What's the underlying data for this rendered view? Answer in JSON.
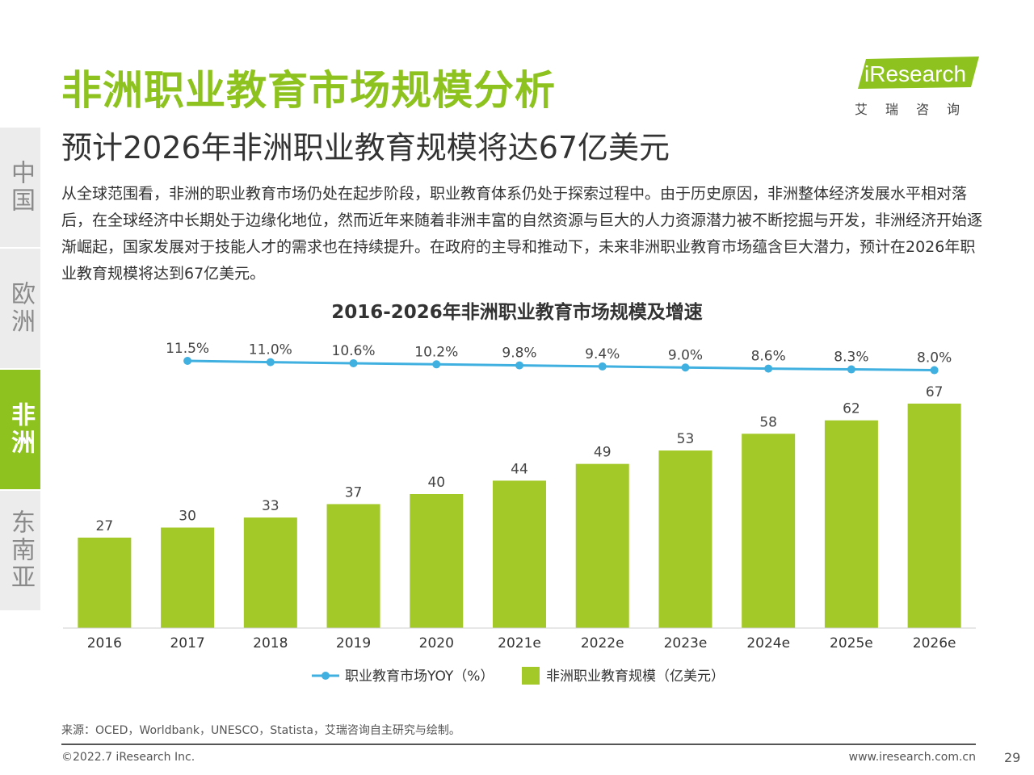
{
  "header": {
    "title": "非洲职业教育市场规模分析",
    "subtitle": "预计2026年非洲职业教育规模将达67亿美元"
  },
  "logo": {
    "brand": "iResearch",
    "chinese": "艾瑞咨询",
    "colors": {
      "green": "#8dc21f"
    }
  },
  "sidebar": {
    "items": [
      {
        "label": "中国",
        "active": false
      },
      {
        "label": "欧洲",
        "active": false
      },
      {
        "label": "非洲",
        "active": true
      },
      {
        "label": "东南亚",
        "active": false
      }
    ]
  },
  "body": {
    "paragraph": "从全球范围看，非洲的职业教育市场仍处在起步阶段，职业教育体系仍处于探索过程中。由于历史原因，非洲整体经济发展水平相对落后，在全球经济中长期处于边缘化地位，然而近年来随着非洲丰富的自然资源与巨大的人力资源潜力被不断挖掘与开发，非洲经济开始逐渐崛起，国家发展对于技能人才的需求也在持续提升。在政府的主导和推动下，未来非洲职业教育市场蕴含巨大潜力，预计在2026年职业教育规模将达到67亿美元。"
  },
  "chart_data": {
    "type": "bar",
    "title": "2016-2026年非洲职业教育市场规模及增速",
    "categories": [
      "2016",
      "2017",
      "2018",
      "2019",
      "2020",
      "2021e",
      "2022e",
      "2023e",
      "2024e",
      "2025e",
      "2026e"
    ],
    "series": [
      {
        "name": "非洲职业教育规模（亿美元）",
        "type": "bar",
        "color": "#a3c928",
        "values": [
          27,
          30,
          33,
          37,
          40,
          44,
          49,
          53,
          58,
          62,
          67
        ],
        "labels": [
          "27",
          "30",
          "33",
          "37",
          "40",
          "44",
          "49",
          "53",
          "58",
          "62",
          "67"
        ]
      },
      {
        "name": "职业教育市场YOY（%）",
        "type": "line",
        "color": "#3fb0e0",
        "x": [
          "2017",
          "2018",
          "2019",
          "2020",
          "2021e",
          "2022e",
          "2023e",
          "2024e",
          "2025e",
          "2026e"
        ],
        "values": [
          11.5,
          11.0,
          10.6,
          10.2,
          9.8,
          9.4,
          9.0,
          8.6,
          8.3,
          8.0
        ],
        "labels": [
          "11.5%",
          "11.0%",
          "10.6%",
          "10.2%",
          "9.8%",
          "9.4%",
          "9.0%",
          "8.6%",
          "8.3%",
          "8.0%"
        ]
      }
    ],
    "legend_position": "bottom",
    "grid": false
  },
  "footer": {
    "source": "来源：OCED，Worldbank，UNESCO，Statista，艾瑞咨询自主研究与绘制。",
    "copyright": "©2022.7 iResearch Inc.",
    "website": "www.iresearch.com.cn",
    "page_number": "29"
  }
}
